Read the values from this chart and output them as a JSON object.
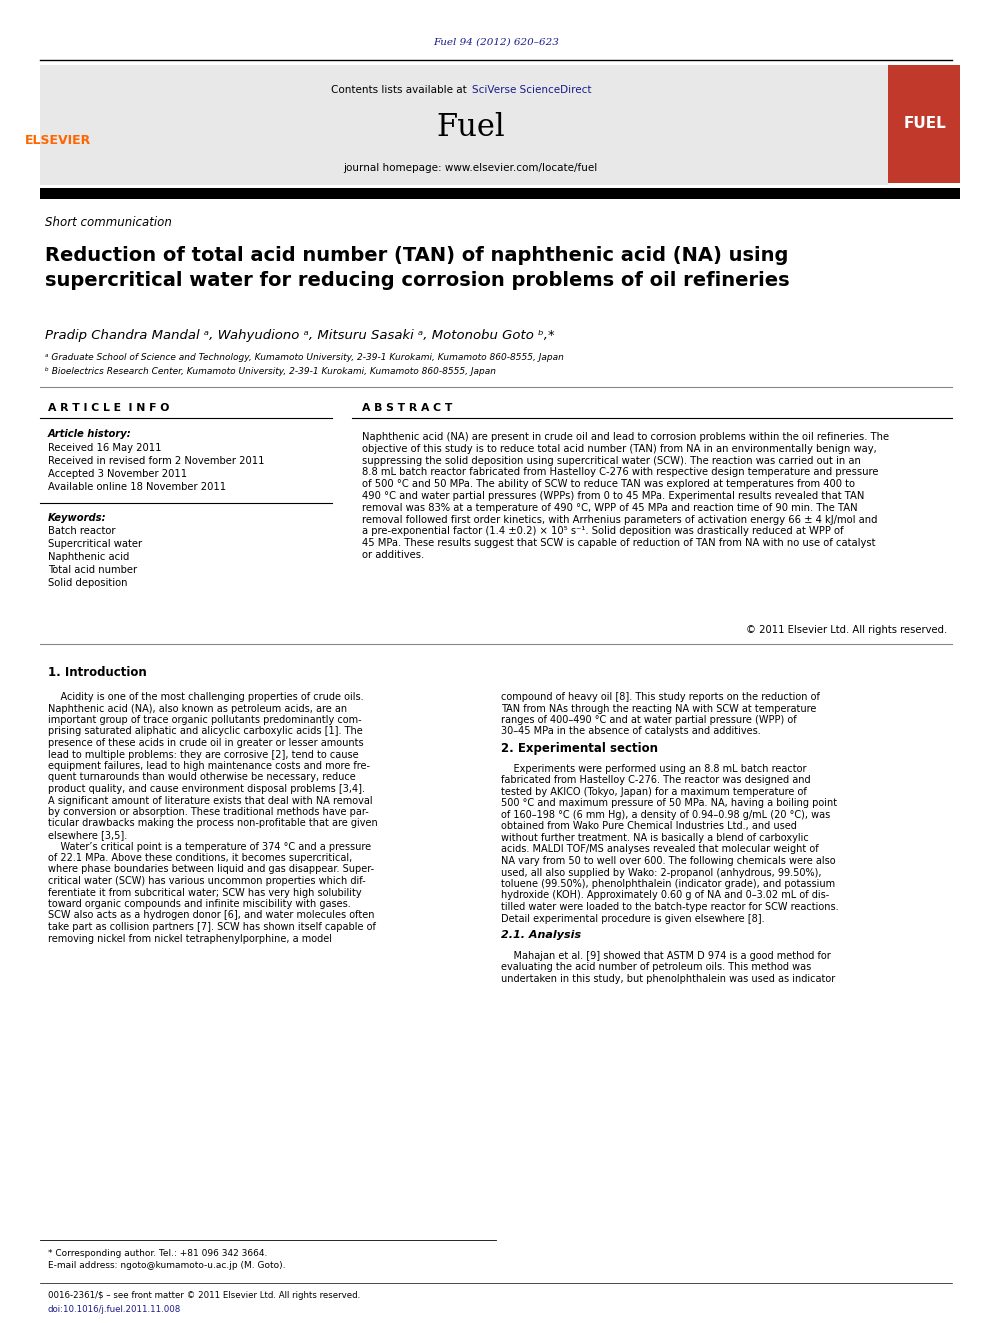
{
  "page_width": 9.92,
  "page_height": 13.23,
  "bg_color": "#ffffff",
  "journal_ref": "Fuel 94 (2012) 620–623",
  "journal_ref_color": "#1a1a8c",
  "header_bg": "#e8e8e8",
  "contents_text": "Contents lists available at ",
  "sciverse_text": "SciVerse ScienceDirect",
  "journal_name": "Fuel",
  "homepage_text": "journal homepage: www.elsevier.com/locate/fuel",
  "elsevier_color": "#ff6600",
  "fuel_cover_color": "#c0392b",
  "section_type": "Short communication",
  "title": "Reduction of total acid number (TAN) of naphthenic acid (NA) using\nsupercritical water for reducing corrosion problems of oil refineries",
  "authors": "Pradip Chandra Mandal ᵃ, Wahyudiono ᵃ, Mitsuru Sasaki ᵃ, Motonobu Goto ᵇ,*",
  "affil_a": "ᵃ Graduate School of Science and Technology, Kumamoto University, 2-39-1 Kurokami, Kumamoto 860-8555, Japan",
  "affil_b": "ᵇ Bioelectrics Research Center, Kumamoto University, 2-39-1 Kurokami, Kumamoto 860-8555, Japan",
  "article_info_header": "A R T I C L E  I N F O",
  "abstract_header": "A B S T R A C T",
  "article_history_label": "Article history:",
  "received1": "Received 16 May 2011",
  "received2": "Received in revised form 2 November 2011",
  "accepted": "Accepted 3 November 2011",
  "available": "Available online 18 November 2011",
  "keywords_label": "Keywords:",
  "keywords": [
    "Batch reactor",
    "Supercritical water",
    "Naphthenic acid",
    "Total acid number",
    "Solid deposition"
  ],
  "abstract_text_lines": [
    "Naphthenic acid (NA) are present in crude oil and lead to corrosion problems within the oil refineries. The",
    "objective of this study is to reduce total acid number (TAN) from NA in an environmentally benign way,",
    "suppressing the solid deposition using supercritical water (SCW). The reaction was carried out in an",
    "8.8 mL batch reactor fabricated from Hastelloy C-276 with respective design temperature and pressure",
    "of 500 °C and 50 MPa. The ability of SCW to reduce TAN was explored at temperatures from 400 to",
    "490 °C and water partial pressures (WPPs) from 0 to 45 MPa. Experimental results revealed that TAN",
    "removal was 83% at a temperature of 490 °C, WPP of 45 MPa and reaction time of 90 min. The TAN",
    "removal followed first order kinetics, with Arrhenius parameters of activation energy 66 ± 4 kJ/mol and",
    "a pre-exponential factor (1.4 ±0.2) × 10⁵ s⁻¹. Solid deposition was drastically reduced at WPP of",
    "45 MPa. These results suggest that SCW is capable of reduction of TAN from NA with no use of catalyst",
    "or additives."
  ],
  "copyright_text": "© 2011 Elsevier Ltd. All rights reserved.",
  "intro_header": "1. Introduction",
  "intro_lines_left": [
    "    Acidity is one of the most challenging properties of crude oils.",
    "Naphthenic acid (NA), also known as petroleum acids, are an",
    "important group of trace organic pollutants predominantly com-",
    "prising saturated aliphatic and alicyclic carboxylic acids [1]. The",
    "presence of these acids in crude oil in greater or lesser amounts",
    "lead to multiple problems: they are corrosive [2], tend to cause",
    "equipment failures, lead to high maintenance costs and more fre-",
    "quent turnarounds than would otherwise be necessary, reduce",
    "product quality, and cause environment disposal problems [3,4].",
    "A significant amount of literature exists that deal with NA removal",
    "by conversion or absorption. These traditional methods have par-",
    "ticular drawbacks making the process non-profitable that are given",
    "elsewhere [3,5].",
    "    Water’s critical point is a temperature of 374 °C and a pressure",
    "of 22.1 MPa. Above these conditions, it becomes supercritical,",
    "where phase boundaries between liquid and gas disappear. Super-",
    "critical water (SCW) has various uncommon properties which dif-",
    "ferentiate it from subcritical water; SCW has very high solubility",
    "toward organic compounds and infinite miscibility with gases.",
    "SCW also acts as a hydrogen donor [6], and water molecules often",
    "take part as collision partners [7]. SCW has shown itself capable of",
    "removing nickel from nickel tetraphenylporphine, a model"
  ],
  "right_col_intro_lines": [
    "compound of heavy oil [8]. This study reports on the reduction of",
    "TAN from NAs through the reacting NA with SCW at temperature",
    "ranges of 400–490 °C and at water partial pressure (WPP) of",
    "30–45 MPa in the absence of catalysts and additives."
  ],
  "exp_section_header": "2. Experimental section",
  "exp_lines": [
    "    Experiments were performed using an 8.8 mL batch reactor",
    "fabricated from Hastelloy C-276. The reactor was designed and",
    "tested by AKICO (Tokyo, Japan) for a maximum temperature of",
    "500 °C and maximum pressure of 50 MPa. NA, having a boiling point",
    "of 160–198 °C (6 mm Hg), a density of 0.94–0.98 g/mL (20 °C), was",
    "obtained from Wako Pure Chemical Industries Ltd., and used",
    "without further treatment. NA is basically a blend of carboxylic",
    "acids. MALDI TOF/MS analyses revealed that molecular weight of",
    "NA vary from 50 to well over 600. The following chemicals were also",
    "used, all also supplied by Wako: 2-propanol (anhydrous, 99.50%),",
    "toluene (99.50%), phenolphthalein (indicator grade), and potassium",
    "hydroxide (KOH). Approximately 0.60 g of NA and 0–3.02 mL of dis-",
    "tilled water were loaded to the batch-type reactor for SCW reactions.",
    "Detail experimental procedure is given elsewhere [8]."
  ],
  "analysis_header": "2.1. Analysis",
  "analysis_lines": [
    "    Mahajan et al. [9] showed that ASTM D 974 is a good method for",
    "evaluating the acid number of petroleum oils. This method was",
    "undertaken in this study, but phenolphthalein was used as indicator"
  ],
  "footer_note": "* Corresponding author. Tel.: +81 096 342 3664.",
  "footer_email": "E-mail address: ngoto@kumamoto-u.ac.jp (M. Goto).",
  "footer_issn": "0016-2361/$ – see front matter © 2011 Elsevier Ltd. All rights reserved.",
  "footer_doi": "doi:10.1016/j.fuel.2011.11.008",
  "link_color": "#1a1a8c",
  "text_color": "#000000"
}
